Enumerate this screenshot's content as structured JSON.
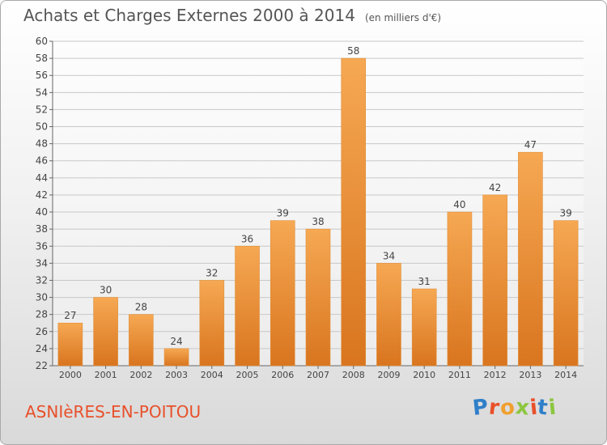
{
  "header": {
    "title": "Achats et Charges Externes 2000 à 2014",
    "unit": "(en milliers d'€)"
  },
  "footer": {
    "place": "ASNIèRES-EN-POITOU",
    "logo": "Proxiti",
    "logo_colors": [
      "#2f7fc9",
      "#e8502a",
      "#f0a030",
      "#8cc63f",
      "#e8502a",
      "#2f7fc9",
      "#8cc63f"
    ]
  },
  "colors": {
    "bar_light": "#f6a853",
    "bar_dark": "#d9751f",
    "grid": "#c8c8c8",
    "axis_text": "#444444",
    "place_text": "#e8502a"
  },
  "chart_data": {
    "type": "bar",
    "title": "Achats et Charges Externes 2000 à 2014",
    "subtitle": "(en milliers d'€)",
    "categories": [
      "2000",
      "2001",
      "2002",
      "2003",
      "2004",
      "2005",
      "2006",
      "2007",
      "2008",
      "2009",
      "2010",
      "2011",
      "2012",
      "2013",
      "2014"
    ],
    "values": [
      27,
      30,
      28,
      24,
      32,
      36,
      39,
      38,
      58,
      34,
      31,
      40,
      42,
      47,
      39
    ],
    "ylim": [
      22,
      60
    ],
    "ytick_step": 2,
    "grid": true,
    "legend": "none"
  }
}
